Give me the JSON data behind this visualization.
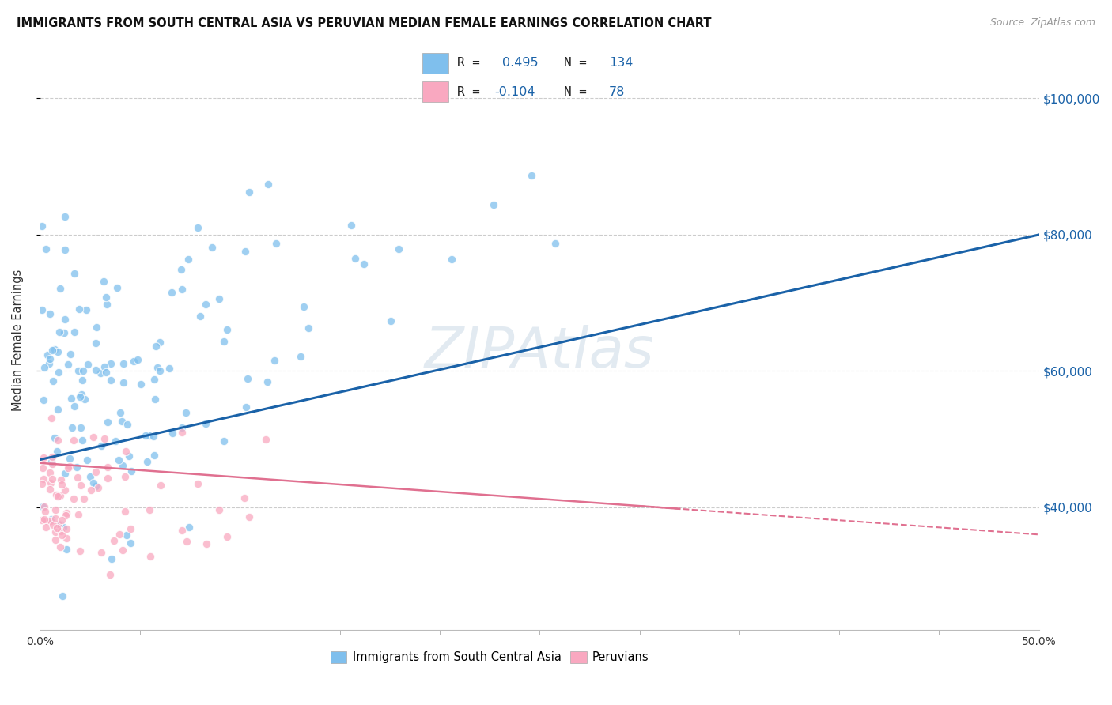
{
  "title": "IMMIGRANTS FROM SOUTH CENTRAL ASIA VS PERUVIAN MEDIAN FEMALE EARNINGS CORRELATION CHART",
  "source": "Source: ZipAtlas.com",
  "ylabel": "Median Female Earnings",
  "y_ticks": [
    40000,
    60000,
    80000,
    100000
  ],
  "y_tick_labels": [
    "$40,000",
    "$60,000",
    "$80,000",
    "$100,000"
  ],
  "x_range": [
    0.0,
    0.5
  ],
  "y_range": [
    22000,
    107000
  ],
  "blue_color": "#7fbfed",
  "pink_color": "#f9a8c0",
  "blue_line_color": "#1a62a8",
  "pink_line_color": "#e07090",
  "blue_line_x0": 0.0,
  "blue_line_y0": 47000,
  "blue_line_x1": 0.5,
  "blue_line_y1": 80000,
  "pink_line_x0": 0.0,
  "pink_line_y0": 46500,
  "pink_line_x1": 0.5,
  "pink_line_y1": 36000,
  "watermark_text": "ZIPAtlas",
  "watermark_color": "#d0dde8",
  "watermark_alpha": 0.6
}
